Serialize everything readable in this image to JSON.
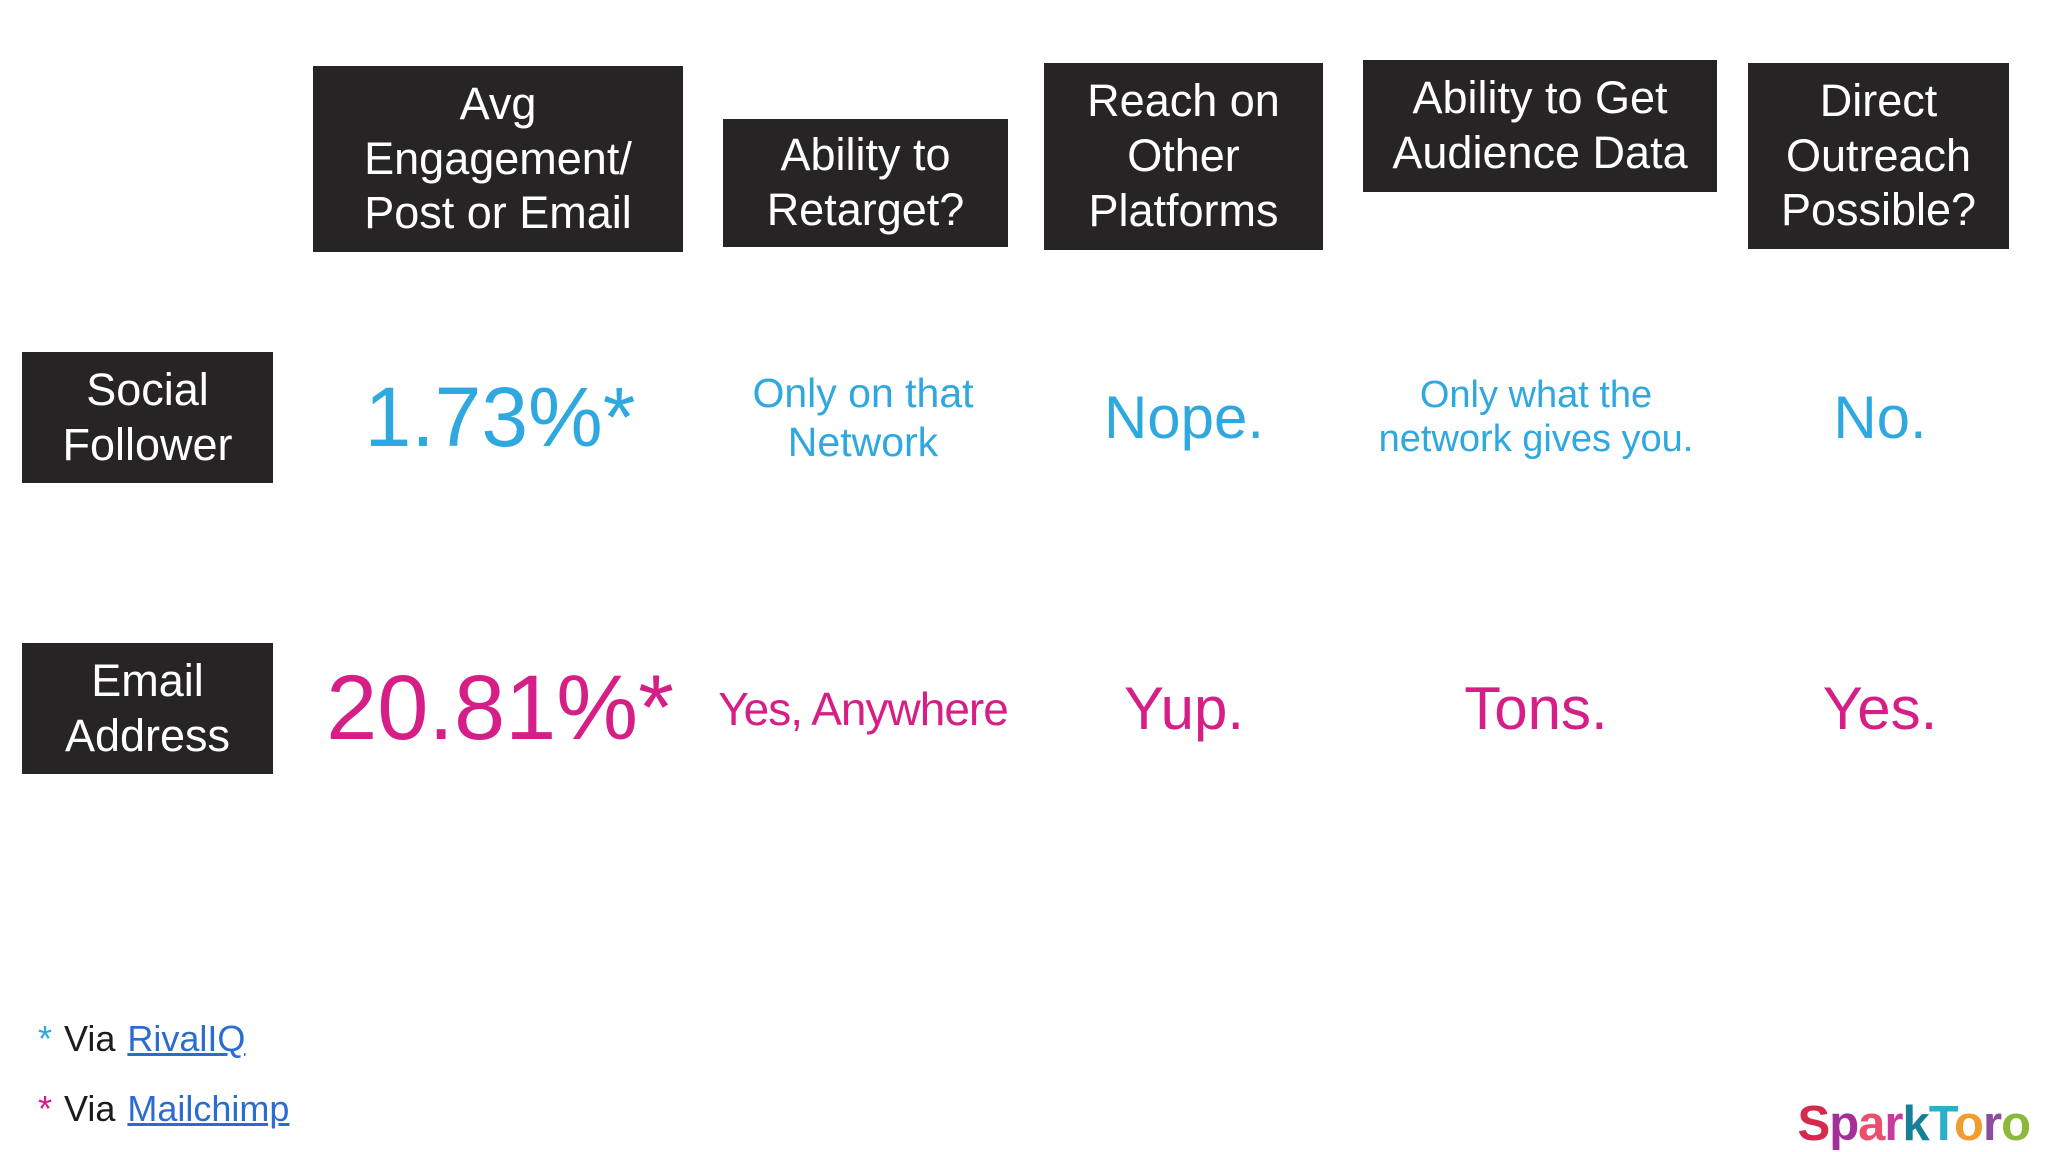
{
  "table": {
    "columns": [
      {
        "label": "Avg\nEngagement/\nPost or Email"
      },
      {
        "label": "Ability to\nRetarget?"
      },
      {
        "label": "Reach on\nOther\nPlatforms"
      },
      {
        "label": "Ability to Get\nAudience Data"
      },
      {
        "label": "Direct\nOutreach\nPossible?"
      }
    ],
    "rows": [
      {
        "label": "Social\nFollower",
        "cells": [
          "1.73%*",
          "Only on that\nNetwork",
          "Nope.",
          "Only what the\nnetwork gives you.",
          "No."
        ]
      },
      {
        "label": "Email\nAddress",
        "cells": [
          "20.81%*",
          "Yes, Anywhere",
          "Yup.",
          "Tons.",
          "Yes."
        ]
      }
    ]
  },
  "footnotes": [
    {
      "marker": "*",
      "text": "Via",
      "link": "RivalIQ"
    },
    {
      "marker": "*",
      "text": "Via",
      "link": "Mailchimp"
    }
  ],
  "logo": {
    "text": "SparkToro",
    "letters": [
      {
        "ch": "S",
        "color": "#d5294e"
      },
      {
        "ch": "p",
        "color": "#a42f96"
      },
      {
        "ch": "a",
        "color": "#e8506e"
      },
      {
        "ch": "r",
        "color": "#c73b9e"
      },
      {
        "ch": "k",
        "color": "#177f98"
      },
      {
        "ch": "T",
        "color": "#2bb0c9"
      },
      {
        "ch": "o",
        "color": "#f09c2f"
      },
      {
        "ch": "r",
        "color": "#8a4da0"
      },
      {
        "ch": "o",
        "color": "#8db93a"
      }
    ]
  },
  "colors": {
    "box-bg": "#272425",
    "blue": "#2fa8e0",
    "pink": "#d51f87",
    "link": "#2b6cd0",
    "text": "#1c1c1c",
    "bg": "#ffffff"
  }
}
